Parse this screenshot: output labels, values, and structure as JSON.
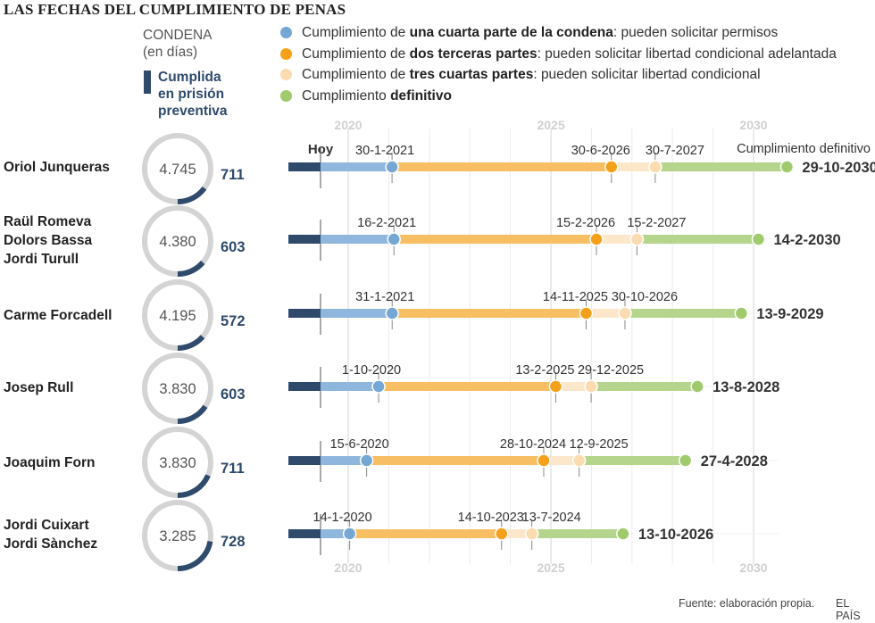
{
  "title": "LAS FECHAS DEL CUMPLIMIENTO DE PENAS",
  "condena_label": [
    "CONDENA",
    "(en días)"
  ],
  "cumplida_label": [
    "Cumplida",
    "en prisión",
    "preventiva"
  ],
  "legend": [
    {
      "prefix": "Cumplimiento de ",
      "bold": "una cuarta parte de la condena",
      "suffix": ": pueden solicitar permisos",
      "color": "#74a7d4"
    },
    {
      "prefix": "Cumplimiento de ",
      "bold": "dos terceras partes",
      "suffix": ": pueden solicitar libertad condicional adelantada",
      "color": "#f5a01a"
    },
    {
      "prefix": "Cumplimiento de ",
      "bold": "tres cuartas partes",
      "suffix": ": pueden solicitar libertad condicional",
      "color": "#fbdcb0"
    },
    {
      "prefix": "Cumplimiento ",
      "bold": "definitivo",
      "suffix": "",
      "color": "#9fcb6d"
    }
  ],
  "hoy_label": "Hoy",
  "definitivo_label": "Cumplimiento definitivo",
  "source": "Fuente: elaboración propia.",
  "brand": "EL PAÍS",
  "colors": {
    "prison": "#2f4a6b",
    "quarter": "#74a7d4",
    "quarter_bar": "#8fb6dc",
    "twothirds": "#f5a01a",
    "twothirds_bar": "#f7be63",
    "threequarters": "#fbdcb0",
    "threequarters_bar": "#fde7cb",
    "definitive": "#9fcb6d",
    "definitive_bar": "#b4d58b",
    "ring": "#d4d4d4",
    "grid": "#dedede"
  },
  "chart_data": {
    "type": "timeline",
    "x_axis": {
      "ticks": [
        "2020",
        "2025",
        "2030"
      ],
      "range": [
        "2019-10-18",
        "2030-12-31"
      ],
      "today": "2019-10-14"
    },
    "rows": [
      {
        "names": [
          "Oriol Junqueras"
        ],
        "condena_dias": "4.745",
        "cumplida_dias": "711",
        "condena": 4745,
        "cumplida": 711,
        "quarter": "30-1-2021",
        "twothirds": "30-6-2026",
        "threequarters": "30-7-2027",
        "definitivo": "29-10-2030"
      },
      {
        "names": [
          "Raül Romeva",
          "Dolors Bassa",
          "Jordi Turull"
        ],
        "condena_dias": "4.380",
        "cumplida_dias": "603",
        "condena": 4380,
        "cumplida": 603,
        "quarter": "16-2-2021",
        "twothirds": "15-2-2026",
        "threequarters": "15-2-2027",
        "definitivo": "14-2-2030"
      },
      {
        "names": [
          "Carme Forcadell"
        ],
        "condena_dias": "4.195",
        "cumplida_dias": "572",
        "condena": 4195,
        "cumplida": 572,
        "quarter": "31-1-2021",
        "twothirds": "14-11-2025",
        "threequarters": "30-10-2026",
        "definitivo": "13-9-2029"
      },
      {
        "names": [
          "Josep Rull"
        ],
        "condena_dias": "3.830",
        "cumplida_dias": "603",
        "condena": 3830,
        "cumplida": 603,
        "quarter": "1-10-2020",
        "twothirds": "13-2-2025",
        "threequarters": "29-12-2025",
        "definitivo": "13-8-2028"
      },
      {
        "names": [
          "Joaquim Forn"
        ],
        "condena_dias": "3.830",
        "cumplida_dias": "711",
        "condena": 3830,
        "cumplida": 711,
        "quarter": "15-6-2020",
        "twothirds": "28-10-2024",
        "threequarters": "12-9-2025",
        "definitivo": "27-4-2028"
      },
      {
        "names": [
          "Jordi Cuixart",
          "Jordi Sànchez"
        ],
        "condena_dias": "3.285",
        "cumplida_dias": "728",
        "condena": 3285,
        "cumplida": 728,
        "quarter": "14-1-2020",
        "twothirds": "14-10-2023",
        "threequarters": "13-7-2024",
        "definitivo": "13-10-2026"
      }
    ]
  }
}
